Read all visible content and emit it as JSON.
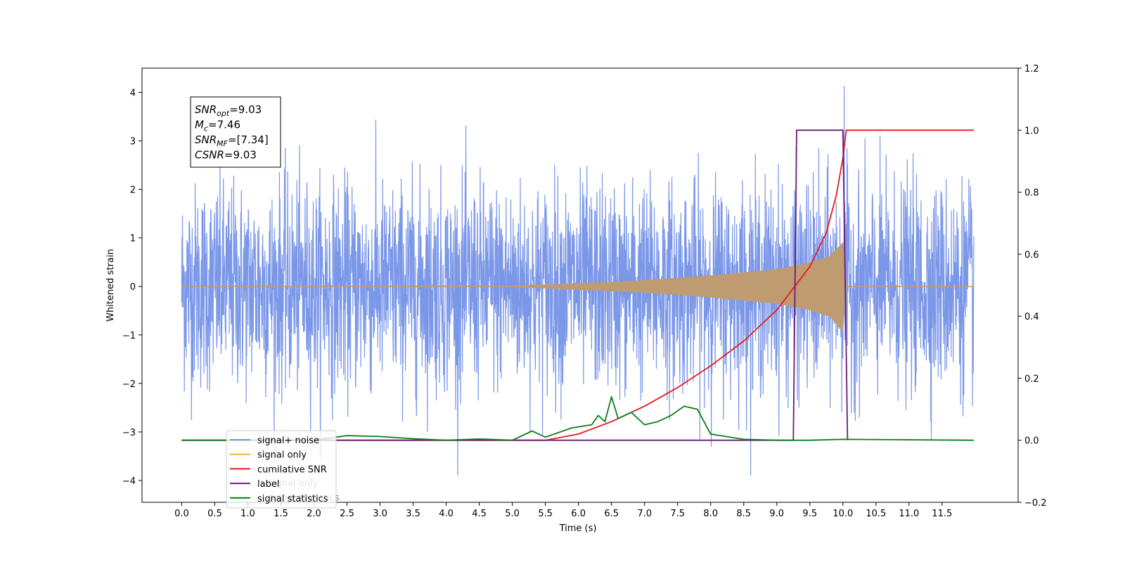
{
  "chart_data": {
    "type": "line",
    "xlabel": "Time (s)",
    "ylabel": "Whitened strain",
    "xlim": [
      -0.6,
      12.65
    ],
    "ylim": [
      -4.45,
      4.5
    ],
    "y2lim": [
      -0.2,
      1.2
    ],
    "x_ticks": [
      0.0,
      0.5,
      1.0,
      1.5,
      2.0,
      2.5,
      3.0,
      3.5,
      4.0,
      4.5,
      5.0,
      5.5,
      6.0,
      6.5,
      7.0,
      7.5,
      8.0,
      8.5,
      9.0,
      9.5,
      10.0,
      10.5,
      11.0,
      11.5
    ],
    "x_tick_labels": [
      "0.0",
      "0.5",
      "1.0",
      "1.5",
      "2.0",
      "2.5",
      "3.0",
      "3.5",
      "4.0",
      "4.5",
      "5.0",
      "5.5",
      "6.0",
      "6.5",
      "7.0",
      "7.5",
      "8.0",
      "8.5",
      "9.0",
      "9.5",
      "10.0",
      "10.5",
      "11.0",
      "11.5"
    ],
    "y_ticks": [
      4,
      3,
      2,
      1,
      0,
      -1,
      -2,
      -3,
      -4
    ],
    "y_tick_labels": [
      "4",
      "3",
      "2",
      "1",
      "0",
      "−1",
      "−2",
      "−3",
      "−4"
    ],
    "y2_ticks": [
      1.2,
      1.0,
      0.8,
      0.6,
      0.4,
      0.2,
      0.0,
      -0.2
    ],
    "y2_tick_labels": [
      "1.2",
      "1.0",
      "0.8",
      "0.6",
      "0.4",
      "0.2",
      "0.0",
      "−0.2"
    ],
    "legend_position": "lower-left",
    "grid": false,
    "colors": {
      "signal_noise": "#7b97e8",
      "signal_only": "#f5b041",
      "signal_overlap": "#bf9b72",
      "cumulative_snr": "#e8191c",
      "label": "#6a1b7a",
      "signal_statistics": "#0a7d1a"
    },
    "series": [
      {
        "name": "signal+ noise",
        "axis": "left",
        "description_values": {
          "x_range": [
            0.0,
            11.98
          ],
          "amplitude_approx": 3.3,
          "max_peak": 4.13
        }
      },
      {
        "name": "signal only",
        "axis": "left",
        "envelope": {
          "x": [
            0.0,
            5.0,
            6.0,
            7.0,
            8.0,
            9.0,
            9.5,
            9.8,
            10.0,
            10.05,
            10.1,
            11.98
          ],
          "amp": [
            0.0,
            0.01,
            0.06,
            0.12,
            0.22,
            0.35,
            0.48,
            0.62,
            0.9,
            0.0,
            0.0,
            0.0
          ]
        }
      },
      {
        "name": "cumilative SNR",
        "axis": "right",
        "x": [
          0.0,
          5.5,
          6.0,
          6.5,
          7.0,
          7.5,
          8.0,
          8.5,
          9.0,
          9.5,
          9.75,
          9.9,
          10.0,
          10.05,
          11.98
        ],
        "y": [
          0.0,
          0.0,
          0.02,
          0.06,
          0.11,
          0.17,
          0.24,
          0.32,
          0.42,
          0.56,
          0.67,
          0.79,
          0.91,
          1.0,
          1.0
        ]
      },
      {
        "name": "label",
        "axis": "right",
        "x": [
          0.0,
          9.25,
          9.3,
          10.0,
          10.07,
          10.07
        ],
        "y": [
          0.0,
          0.0,
          1.0,
          1.0,
          0.0,
          0.0
        ]
      },
      {
        "name": "signal statistics",
        "axis": "right",
        "x": [
          0.0,
          2.0,
          2.5,
          3.0,
          3.5,
          4.0,
          4.5,
          5.0,
          5.3,
          5.5,
          5.9,
          6.2,
          6.3,
          6.4,
          6.5,
          6.6,
          6.8,
          7.0,
          7.2,
          7.4,
          7.6,
          7.8,
          8.0,
          8.5,
          9.0,
          9.5,
          10.0,
          11.98
        ],
        "y": [
          0.0,
          0.0,
          0.015,
          0.012,
          0.005,
          0.0,
          0.004,
          0.0,
          0.03,
          0.01,
          0.04,
          0.05,
          0.08,
          0.06,
          0.14,
          0.07,
          0.09,
          0.05,
          0.06,
          0.08,
          0.11,
          0.1,
          0.02,
          0.003,
          0.0,
          0.0,
          0.003,
          0.0
        ]
      }
    ],
    "annotation": {
      "lines": [
        {
          "main": "SNR",
          "sub": "opt",
          "rest": "=9.03"
        },
        {
          "main": "M",
          "sub": "c",
          "rest": "=7.46"
        },
        {
          "main": "SNR",
          "sub": "MF",
          "rest": "=[7.34]"
        },
        {
          "main": "CSNR",
          "sub": "",
          "rest": "=9.03"
        }
      ]
    },
    "legend": {
      "entries": [
        "signal+ noise",
        "signal only",
        "cumilative SNR",
        "label",
        "signal statistics"
      ],
      "overlapped_text": [
        "signal only",
        "signal statistics"
      ]
    }
  }
}
